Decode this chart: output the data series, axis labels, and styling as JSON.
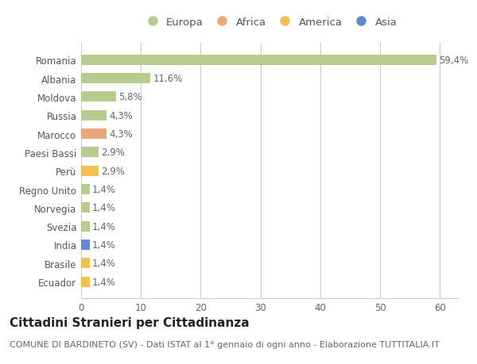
{
  "countries": [
    "Romania",
    "Albania",
    "Moldova",
    "Russia",
    "Marocco",
    "Paesi Bassi",
    "Perù",
    "Regno Unito",
    "Norvegia",
    "Svezia",
    "India",
    "Brasile",
    "Ecuador"
  ],
  "values": [
    59.4,
    11.6,
    5.8,
    4.3,
    4.3,
    2.9,
    2.9,
    1.4,
    1.4,
    1.4,
    1.4,
    1.4,
    1.4
  ],
  "value_labels": [
    "59,4%",
    "11,6%",
    "5,8%",
    "4,3%",
    "4,3%",
    "2,9%",
    "2,9%",
    "1,4%",
    "1,4%",
    "1,4%",
    "1,4%",
    "1,4%",
    "1,4%"
  ],
  "continents": [
    "Europa",
    "Europa",
    "Europa",
    "Europa",
    "Africa",
    "Europa",
    "America",
    "Europa",
    "Europa",
    "Europa",
    "Asia",
    "America",
    "America"
  ],
  "continent_colors": {
    "Europa": "#b5cc8e",
    "Africa": "#e8a87c",
    "America": "#f0c050",
    "Asia": "#6688cc"
  },
  "legend_order": [
    "Europa",
    "Africa",
    "America",
    "Asia"
  ],
  "xlim": [
    0,
    63
  ],
  "xticks": [
    0,
    10,
    20,
    30,
    40,
    50,
    60
  ],
  "title": "Cittadini Stranieri per Cittadinanza",
  "subtitle": "COMUNE DI BARDINETO (SV) - Dati ISTAT al 1° gennaio di ogni anno - Elaborazione TUTTITALIA.IT",
  "background_color": "#ffffff",
  "grid_color": "#cccccc",
  "bar_height": 0.55,
  "label_fontsize": 8.5,
  "title_fontsize": 11,
  "subtitle_fontsize": 8,
  "tick_fontsize": 8.5,
  "legend_fontsize": 9.5
}
